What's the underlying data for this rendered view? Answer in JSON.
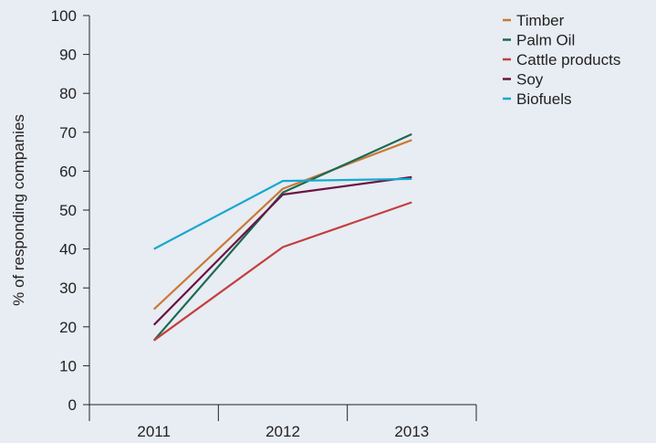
{
  "chart_data": {
    "type": "line",
    "title": "",
    "xlabel": "",
    "ylabel": "% of responding companies",
    "categories": [
      "2011",
      "2012",
      "2013"
    ],
    "ylim": [
      0,
      100
    ],
    "yticks": [
      0,
      10,
      20,
      30,
      40,
      50,
      60,
      70,
      80,
      90,
      100
    ],
    "grid": false,
    "legend_position": "top-right",
    "series": [
      {
        "name": "Timber",
        "color": "#c97a35",
        "values": [
          24.5,
          55.5,
          68
        ]
      },
      {
        "name": "Palm Oil",
        "color": "#1b6a52",
        "values": [
          16.5,
          54.5,
          69.5
        ]
      },
      {
        "name": "Cattle products",
        "color": "#c43e3e",
        "values": [
          16.5,
          40.5,
          52
        ]
      },
      {
        "name": "Soy",
        "color": "#6b1442",
        "values": [
          20.5,
          54,
          58.5
        ]
      },
      {
        "name": "Biofuels",
        "color": "#17a8cf",
        "values": [
          40,
          57.5,
          58
        ]
      }
    ]
  }
}
